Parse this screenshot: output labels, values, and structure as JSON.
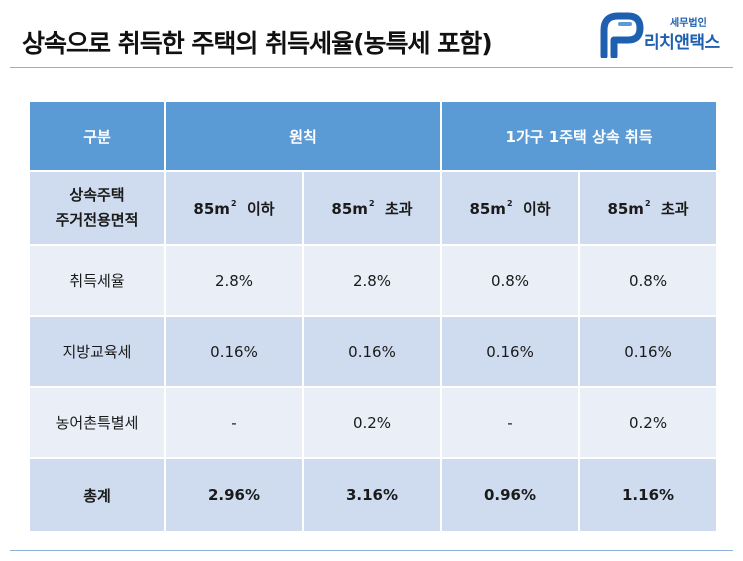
{
  "page": {
    "title": "상속으로 취득한 주택의 취득세율(농특세 포함)"
  },
  "logo": {
    "tagline": "세무법인",
    "name": "리치앤택스",
    "brand_color": "#1f5fb0",
    "icon": "richandtax-logo-mark"
  },
  "table": {
    "header": {
      "category": "구분",
      "group_principle": "원칙",
      "group_special": "1가구 1주택 상속 취득"
    },
    "sub_header": {
      "label_line1": "상속주택",
      "label_line2": "주거전용면적",
      "columns": [
        {
          "prefix": "85m",
          "sup": "2",
          "suffix": "이하"
        },
        {
          "prefix": "85m",
          "sup": "2",
          "suffix": "초과"
        },
        {
          "prefix": "85m",
          "sup": "2",
          "suffix": "이하"
        },
        {
          "prefix": "85m",
          "sup": "2",
          "suffix": "초과"
        }
      ]
    },
    "rows": [
      {
        "label": "취득세율",
        "values": [
          "2.8%",
          "2.8%",
          "0.8%",
          "0.8%"
        ]
      },
      {
        "label": "지방교육세",
        "values": [
          "0.16%",
          "0.16%",
          "0.16%",
          "0.16%"
        ]
      },
      {
        "label": "농어촌특별세",
        "values": [
          "-",
          "0.2%",
          "-",
          "0.2%"
        ]
      }
    ],
    "total": {
      "label": "총계",
      "values": [
        "2.96%",
        "3.16%",
        "0.96%",
        "1.16%"
      ]
    },
    "colors": {
      "header_bg": "#5b9bd5",
      "band_dark": "#cfdcef",
      "band_light": "#e9eef7"
    }
  }
}
